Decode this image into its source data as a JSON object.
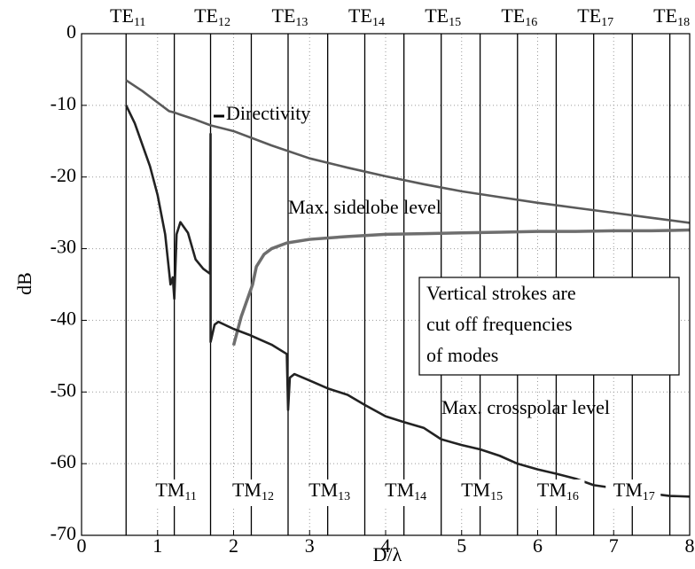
{
  "chart_data": {
    "type": "line",
    "xlabel": "D/λ",
    "ylabel": "dB",
    "xlim": [
      0,
      8
    ],
    "ylim": [
      -70,
      0
    ],
    "xticks": [
      0,
      1,
      2,
      3,
      4,
      5,
      6,
      7,
      8
    ],
    "yticks": [
      -70,
      -60,
      -50,
      -40,
      -30,
      -20,
      -10,
      0
    ],
    "grid": true,
    "mode_lines": [
      {
        "value": 0.586,
        "mode": "TE",
        "index": "11"
      },
      {
        "value": 1.697,
        "mode": "TE",
        "index": "12"
      },
      {
        "value": 2.717,
        "mode": "TE",
        "index": "13"
      },
      {
        "value": 3.726,
        "mode": "TE",
        "index": "14"
      },
      {
        "value": 4.731,
        "mode": "TE",
        "index": "15"
      },
      {
        "value": 5.735,
        "mode": "TE",
        "index": "16"
      },
      {
        "value": 6.737,
        "mode": "TE",
        "index": "17"
      },
      {
        "value": 7.739,
        "mode": "TE",
        "index": "18"
      },
      {
        "value": 1.22,
        "mode": "TM",
        "index": "11"
      },
      {
        "value": 2.233,
        "mode": "TM",
        "index": "12"
      },
      {
        "value": 3.238,
        "mode": "TM",
        "index": "13"
      },
      {
        "value": 4.241,
        "mode": "TM",
        "index": "14"
      },
      {
        "value": 5.243,
        "mode": "TM",
        "index": "15"
      },
      {
        "value": 6.244,
        "mode": "TM",
        "index": "16"
      },
      {
        "value": 7.245,
        "mode": "TM",
        "index": "17"
      }
    ],
    "series": [
      {
        "name": "Directivity",
        "color": "#5a5a5a",
        "x": [
          0.586,
          0.8,
          1.0,
          1.15,
          1.22,
          1.3,
          1.5,
          1.7,
          2.0,
          2.5,
          3.0,
          3.5,
          4.0,
          4.5,
          5.0,
          5.5,
          6.0,
          6.5,
          7.0,
          7.5,
          8.0
        ],
        "values": [
          -6.5,
          -8.0,
          -9.6,
          -10.8,
          -11.0,
          -11.3,
          -12.0,
          -12.8,
          -13.6,
          -15.6,
          -17.4,
          -18.7,
          -19.9,
          -21.0,
          -22.0,
          -22.8,
          -23.6,
          -24.3,
          -25.0,
          -25.7,
          -26.4
        ]
      },
      {
        "name": "Max. sidelobe level",
        "color": "#6e6e6e",
        "x": [
          2.0,
          2.1,
          2.2,
          2.25,
          2.3,
          2.4,
          2.5,
          2.7,
          3.0,
          3.5,
          4.0,
          4.5,
          5.0,
          5.5,
          6.0,
          6.5,
          7.0,
          7.5,
          8.0
        ],
        "values": [
          -43.5,
          -39.5,
          -36.5,
          -35.0,
          -32.5,
          -30.8,
          -30.0,
          -29.2,
          -28.7,
          -28.3,
          -28.0,
          -27.9,
          -27.8,
          -27.7,
          -27.6,
          -27.6,
          -27.5,
          -27.5,
          -27.4
        ]
      },
      {
        "name": "Max. crosspolar level",
        "color": "#222222",
        "x": [
          0.586,
          0.7,
          0.8,
          0.9,
          1.0,
          1.1,
          1.17,
          1.2,
          1.22,
          1.25,
          1.3,
          1.4,
          1.5,
          1.6,
          1.69,
          1.697,
          1.698,
          1.75,
          1.8,
          2.0,
          2.2,
          2.5,
          2.7,
          2.717,
          2.74,
          2.8,
          3.0,
          3.238,
          3.5,
          3.726,
          4.0,
          4.241,
          4.5,
          4.731,
          5.0,
          5.243,
          5.5,
          5.735,
          6.0,
          6.244,
          6.5,
          6.737,
          7.0,
          7.245,
          7.5,
          7.739,
          8.0
        ],
        "values": [
          -10.0,
          -12.5,
          -15.5,
          -18.5,
          -22.5,
          -28.0,
          -35.0,
          -34.0,
          -37.0,
          -28.0,
          -26.3,
          -27.8,
          -31.5,
          -32.8,
          -33.5,
          -14.0,
          -43.0,
          -40.6,
          -40.2,
          -41.2,
          -42.0,
          -43.4,
          -44.7,
          -52.5,
          -48.0,
          -47.5,
          -48.4,
          -49.5,
          -50.4,
          -51.8,
          -53.4,
          -54.2,
          -55.0,
          -56.6,
          -57.4,
          -58.0,
          -58.9,
          -60.0,
          -60.8,
          -61.4,
          -62.1,
          -63.0,
          -63.4,
          -63.8,
          -64.2,
          -64.5,
          -64.6
        ]
      }
    ],
    "annotations": [
      "Directivity",
      "Max. sidelobe level",
      "Max. crosspolar level"
    ],
    "note_box": [
      "Vertical  strokes are",
      "cut off frequencies",
      "of modes"
    ]
  }
}
